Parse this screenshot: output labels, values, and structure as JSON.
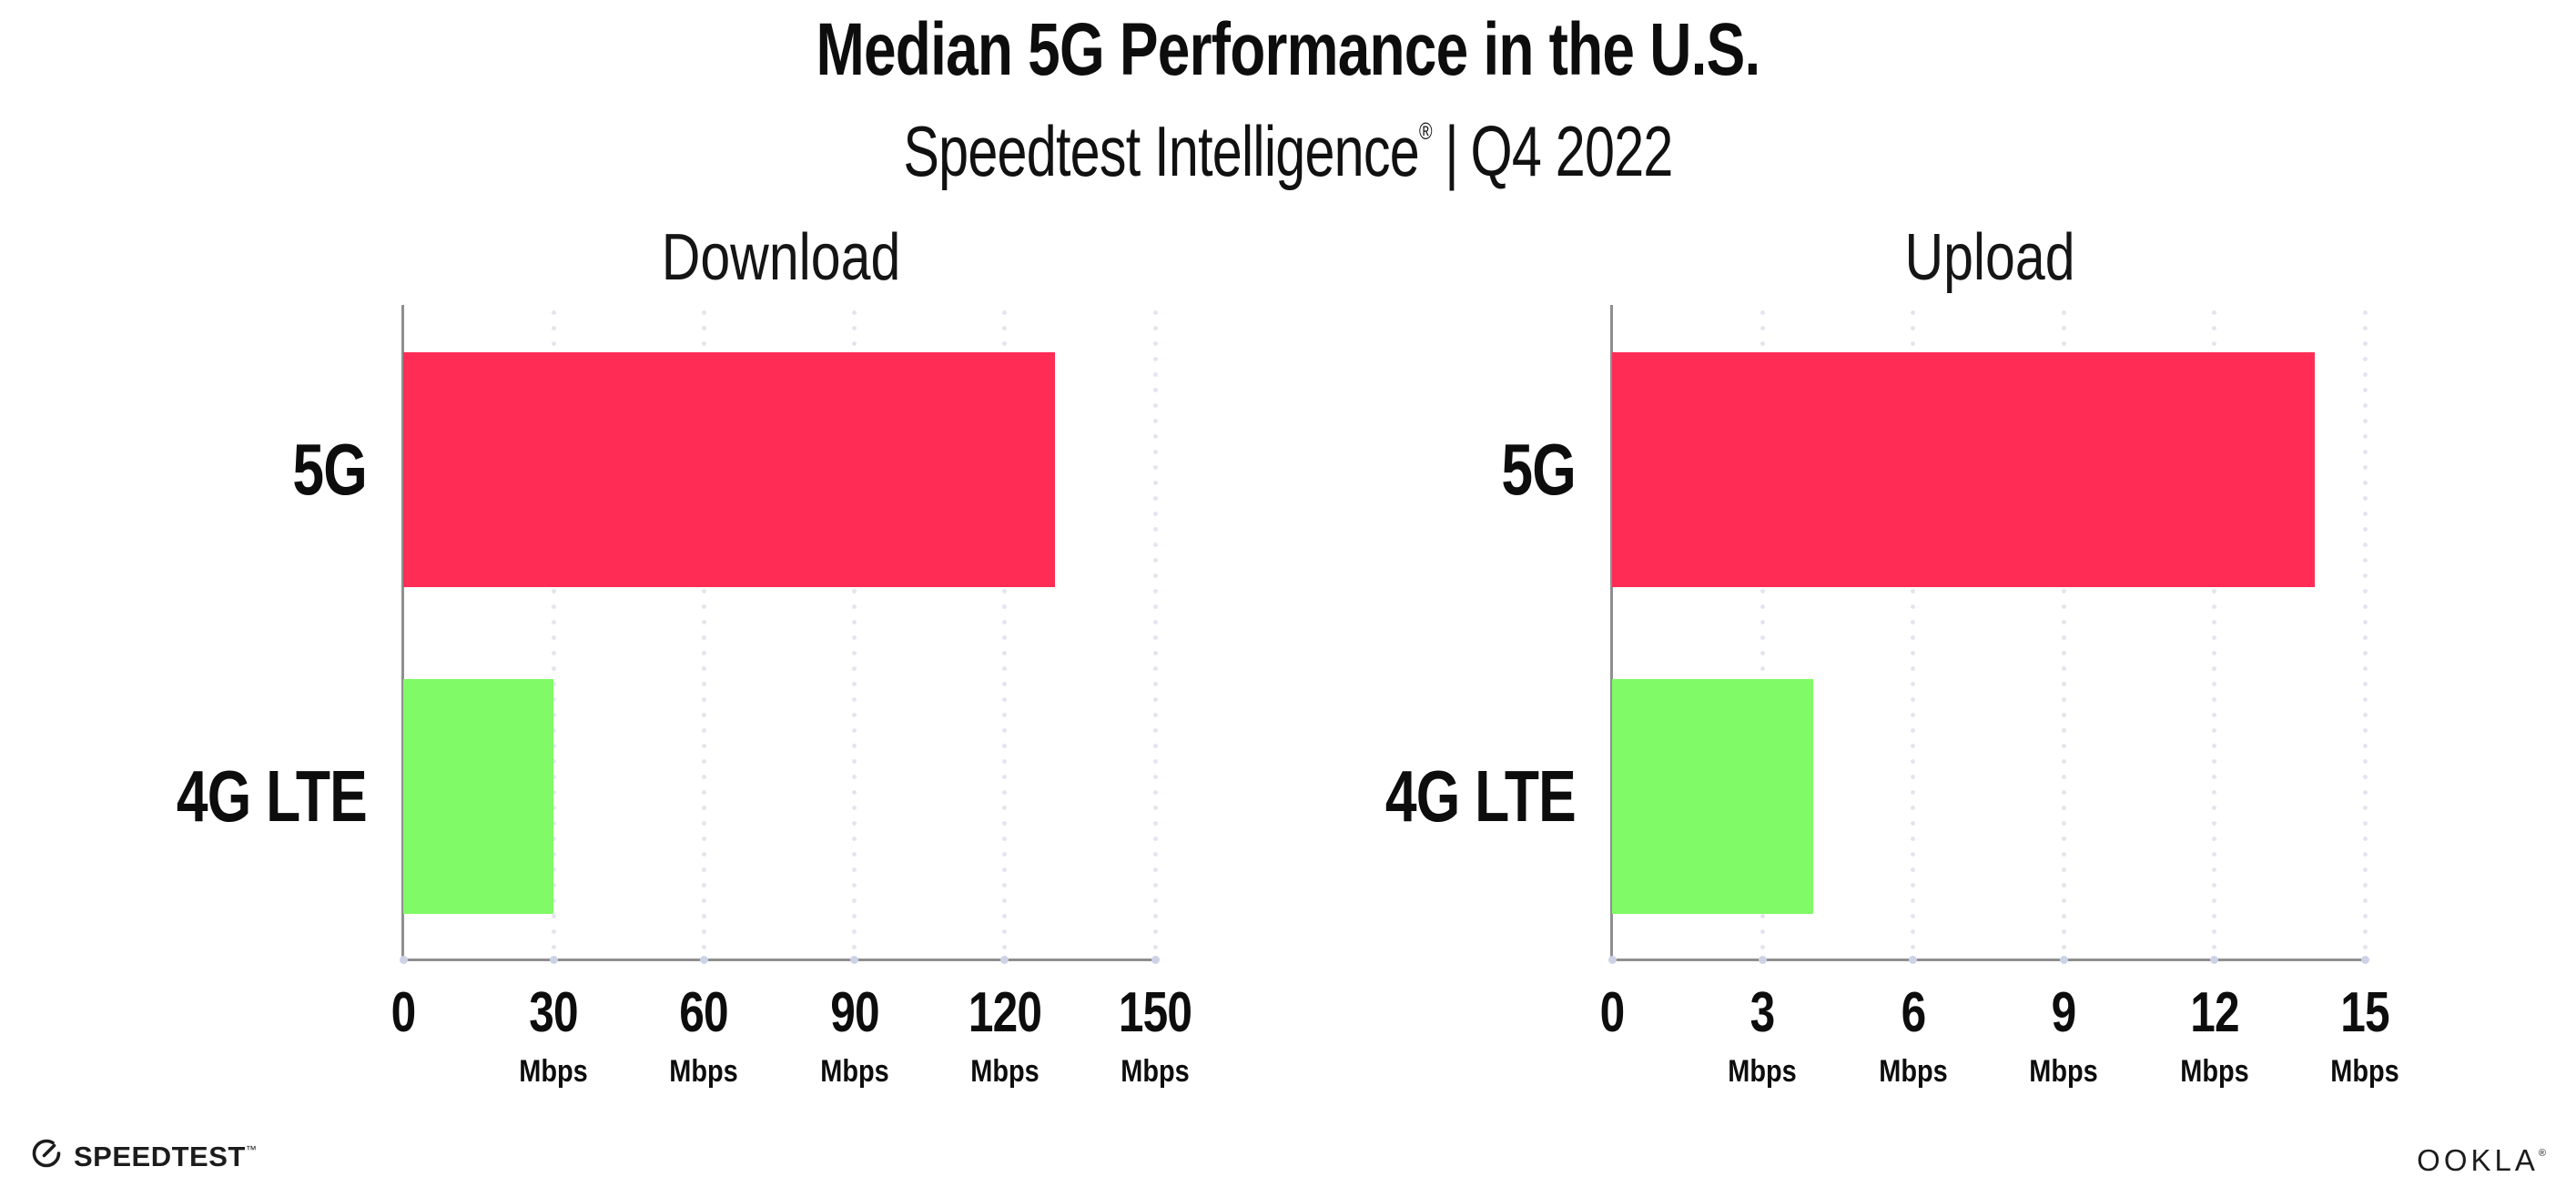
{
  "header": {
    "title": "Median 5G Performance in the U.S.",
    "subtitle_brand": "Speedtest Intelligence",
    "subtitle_reg": "®",
    "subtitle_sep": "|",
    "subtitle_period": "Q4 2022"
  },
  "colors": {
    "bar_5g": "#FF2D55",
    "bar_4g": "#80FA66",
    "gridline": "#e4e4ee",
    "tick_dot": "#ccd3e6",
    "axis": "#8f8f8f",
    "text": "#0d0d0d"
  },
  "chart_data": [
    {
      "type": "bar",
      "orientation": "horizontal",
      "title": "Download",
      "categories": [
        "5G",
        "4G LTE"
      ],
      "values": [
        130,
        30
      ],
      "unit": "Mbps",
      "xlim": [
        0,
        150
      ],
      "xticks": [
        0,
        30,
        60,
        90,
        120,
        150
      ],
      "ticks": [
        {
          "value": "0",
          "unit": ""
        },
        {
          "value": "30",
          "unit": "Mbps"
        },
        {
          "value": "60",
          "unit": "Mbps"
        },
        {
          "value": "90",
          "unit": "Mbps"
        },
        {
          "value": "120",
          "unit": "Mbps"
        },
        {
          "value": "150",
          "unit": "Mbps"
        }
      ],
      "bar_colors": [
        "#FF2D55",
        "#80FA66"
      ],
      "grid": "dotted-vertical-at-ticks",
      "legend": "none"
    },
    {
      "type": "bar",
      "orientation": "horizontal",
      "title": "Upload",
      "categories": [
        "5G",
        "4G LTE"
      ],
      "values": [
        14,
        4
      ],
      "unit": "Mbps",
      "xlim": [
        0,
        15
      ],
      "xticks": [
        0,
        3,
        6,
        9,
        12,
        15
      ],
      "ticks": [
        {
          "value": "0",
          "unit": ""
        },
        {
          "value": "3",
          "unit": "Mbps"
        },
        {
          "value": "6",
          "unit": "Mbps"
        },
        {
          "value": "9",
          "unit": "Mbps"
        },
        {
          "value": "12",
          "unit": "Mbps"
        },
        {
          "value": "15",
          "unit": "Mbps"
        }
      ],
      "bar_colors": [
        "#FF2D55",
        "#80FA66"
      ],
      "grid": "dotted-vertical-at-ticks",
      "legend": "none"
    }
  ],
  "footer": {
    "speedtest_label": "SPEEDTEST",
    "speedtest_mark": "™",
    "ookla_label": "OOKLA",
    "ookla_mark": "®"
  }
}
